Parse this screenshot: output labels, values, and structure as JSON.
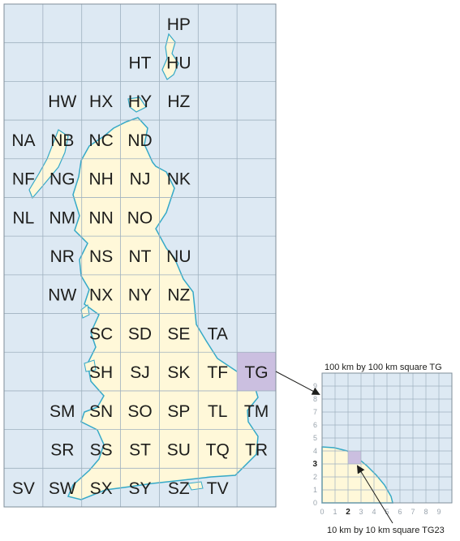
{
  "map": {
    "water_color": "#dde9f3",
    "land_color": "#fff8d9",
    "grid_line_color": "#9fb1bf",
    "coast_color": "#35a9c7",
    "highlight_color": "#cbbfe0",
    "squares": [
      {
        "code": "HP",
        "row": 0,
        "col": 4
      },
      {
        "code": "HT",
        "row": 1,
        "col": 3
      },
      {
        "code": "HU",
        "row": 1,
        "col": 4
      },
      {
        "code": "HW",
        "row": 2,
        "col": 1
      },
      {
        "code": "HX",
        "row": 2,
        "col": 2
      },
      {
        "code": "HY",
        "row": 2,
        "col": 3
      },
      {
        "code": "HZ",
        "row": 2,
        "col": 4
      },
      {
        "code": "NA",
        "row": 3,
        "col": 0
      },
      {
        "code": "NB",
        "row": 3,
        "col": 1
      },
      {
        "code": "NC",
        "row": 3,
        "col": 2
      },
      {
        "code": "ND",
        "row": 3,
        "col": 3
      },
      {
        "code": "NF",
        "row": 4,
        "col": 0
      },
      {
        "code": "NG",
        "row": 4,
        "col": 1
      },
      {
        "code": "NH",
        "row": 4,
        "col": 2
      },
      {
        "code": "NJ",
        "row": 4,
        "col": 3
      },
      {
        "code": "NK",
        "row": 4,
        "col": 4
      },
      {
        "code": "NL",
        "row": 5,
        "col": 0
      },
      {
        "code": "NM",
        "row": 5,
        "col": 1
      },
      {
        "code": "NN",
        "row": 5,
        "col": 2
      },
      {
        "code": "NO",
        "row": 5,
        "col": 3
      },
      {
        "code": "NR",
        "row": 6,
        "col": 1
      },
      {
        "code": "NS",
        "row": 6,
        "col": 2
      },
      {
        "code": "NT",
        "row": 6,
        "col": 3
      },
      {
        "code": "NU",
        "row": 6,
        "col": 4
      },
      {
        "code": "NW",
        "row": 7,
        "col": 1
      },
      {
        "code": "NX",
        "row": 7,
        "col": 2
      },
      {
        "code": "NY",
        "row": 7,
        "col": 3
      },
      {
        "code": "NZ",
        "row": 7,
        "col": 4
      },
      {
        "code": "SC",
        "row": 8,
        "col": 2
      },
      {
        "code": "SD",
        "row": 8,
        "col": 3
      },
      {
        "code": "SE",
        "row": 8,
        "col": 4
      },
      {
        "code": "TA",
        "row": 8,
        "col": 5
      },
      {
        "code": "SH",
        "row": 9,
        "col": 2
      },
      {
        "code": "SJ",
        "row": 9,
        "col": 3
      },
      {
        "code": "SK",
        "row": 9,
        "col": 4
      },
      {
        "code": "TF",
        "row": 9,
        "col": 5
      },
      {
        "code": "TG",
        "row": 9,
        "col": 6,
        "highlighted": true
      },
      {
        "code": "SM",
        "row": 10,
        "col": 1
      },
      {
        "code": "SN",
        "row": 10,
        "col": 2
      },
      {
        "code": "SO",
        "row": 10,
        "col": 3
      },
      {
        "code": "SP",
        "row": 10,
        "col": 4
      },
      {
        "code": "TL",
        "row": 10,
        "col": 5
      },
      {
        "code": "TM",
        "row": 10,
        "col": 6
      },
      {
        "code": "SR",
        "row": 11,
        "col": 1
      },
      {
        "code": "SS",
        "row": 11,
        "col": 2
      },
      {
        "code": "ST",
        "row": 11,
        "col": 3
      },
      {
        "code": "SU",
        "row": 11,
        "col": 4
      },
      {
        "code": "TQ",
        "row": 11,
        "col": 5
      },
      {
        "code": "TR",
        "row": 11,
        "col": 6
      },
      {
        "code": "SV",
        "row": 12,
        "col": 0
      },
      {
        "code": "SW",
        "row": 12,
        "col": 1
      },
      {
        "code": "SX",
        "row": 12,
        "col": 2
      },
      {
        "code": "SY",
        "row": 12,
        "col": 3
      },
      {
        "code": "SZ",
        "row": 12,
        "col": 4
      },
      {
        "code": "TV",
        "row": 12,
        "col": 5
      }
    ]
  },
  "inset": {
    "title": "100 km by 100 km square TG",
    "caption": "10 km by 10 km square TG23",
    "x_ticks": [
      "0",
      "1",
      "2",
      "3",
      "4",
      "5",
      "6",
      "7",
      "8",
      "9"
    ],
    "y_ticks": [
      "0",
      "1",
      "2",
      "3",
      "4",
      "5",
      "6",
      "7",
      "8",
      "9"
    ],
    "highlighted_cell": {
      "easting": 2,
      "northing": 3
    }
  }
}
